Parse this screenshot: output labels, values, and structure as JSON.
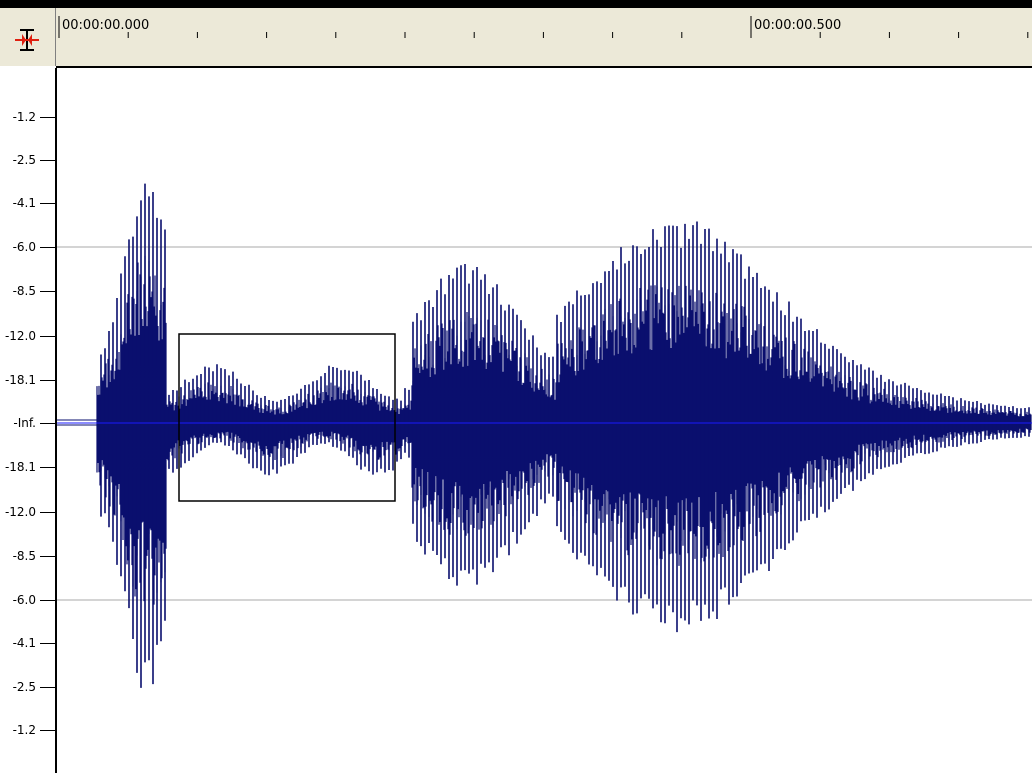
{
  "ruler": {
    "time_start": "00:00:00.000",
    "time_mid": "00:00:00.500"
  },
  "db_scale": {
    "labels": [
      "-1.2",
      "-2.5",
      "-4.1",
      "-6.0",
      "-8.5",
      "-12.0",
      "-18.1",
      "-Inf.",
      "-18.1",
      "-12.0",
      "-8.5",
      "-6.0",
      "-4.1",
      "-2.5",
      "-1.2"
    ]
  },
  "colors": {
    "waveform": "#0a0f6e",
    "grid": "#a8a8a8",
    "ruler_bg": "#ece9d8",
    "selection": "#000000",
    "center_line": "#1a1aff"
  },
  "icons": {
    "corner": "cursor-position-icon"
  }
}
